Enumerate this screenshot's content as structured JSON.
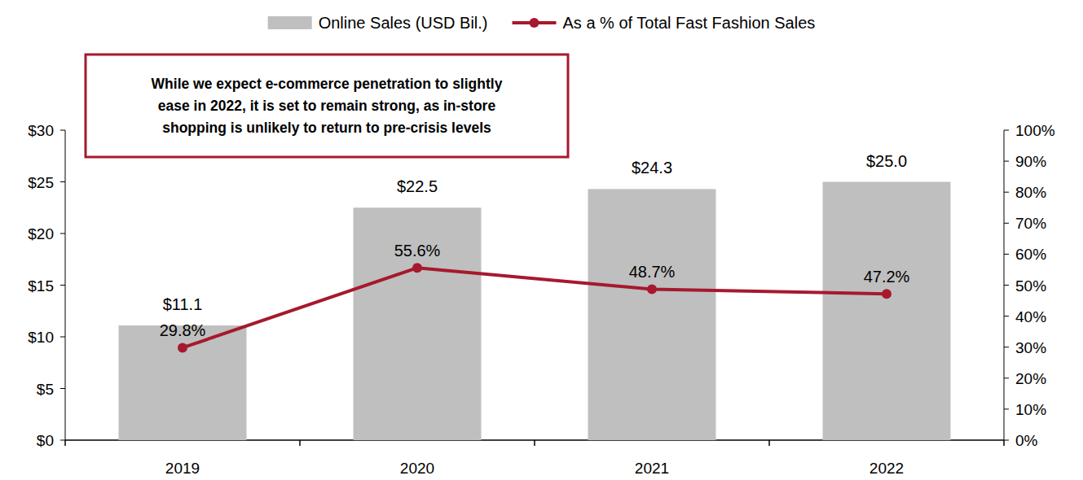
{
  "chart_data": {
    "type": "bar",
    "categories": [
      "2019",
      "2020",
      "2021",
      "2022"
    ],
    "series": [
      {
        "name": "Online Sales (USD Bil.)",
        "type": "bar",
        "color": "#bfbfbf",
        "values": [
          11.1,
          22.5,
          24.3,
          25.0
        ],
        "value_labels": [
          "$11.1",
          "$22.5",
          "$24.3",
          "$25.0"
        ]
      },
      {
        "name": "As a % of Total Fast Fashion Sales",
        "type": "line",
        "axis": "y2",
        "color": "#a6192e",
        "marker": "circle",
        "values": [
          29.8,
          55.6,
          48.7,
          47.2
        ],
        "value_labels": [
          "29.8%",
          "55.6%",
          "48.7%",
          "47.2%"
        ]
      }
    ],
    "ylim": [
      0,
      30
    ],
    "yticks": [
      {
        "value": 0,
        "label": "$0"
      },
      {
        "value": 5,
        "label": "$5"
      },
      {
        "value": 10,
        "label": "$10"
      },
      {
        "value": 15,
        "label": "$15"
      },
      {
        "value": 20,
        "label": "$20"
      },
      {
        "value": 25,
        "label": "$25"
      },
      {
        "value": 30,
        "label": "$30"
      }
    ],
    "y2lim": [
      0,
      100
    ],
    "y2ticks": [
      {
        "value": 0,
        "label": "0%"
      },
      {
        "value": 10,
        "label": "10%"
      },
      {
        "value": 20,
        "label": "20%"
      },
      {
        "value": 30,
        "label": "30%"
      },
      {
        "value": 40,
        "label": "40%"
      },
      {
        "value": 50,
        "label": "50%"
      },
      {
        "value": 60,
        "label": "60%"
      },
      {
        "value": 70,
        "label": "70%"
      },
      {
        "value": 80,
        "label": "80%"
      },
      {
        "value": 90,
        "label": "90%"
      },
      {
        "value": 100,
        "label": "100%"
      }
    ],
    "grid": false,
    "data_labels": true,
    "legend": "top",
    "annotations": [
      "While we expect e-commerce penetration to slightly",
      "ease in 2022, it is set to remain strong, as in-store",
      "shopping is unlikely to return to pre-crisis levels"
    ]
  }
}
